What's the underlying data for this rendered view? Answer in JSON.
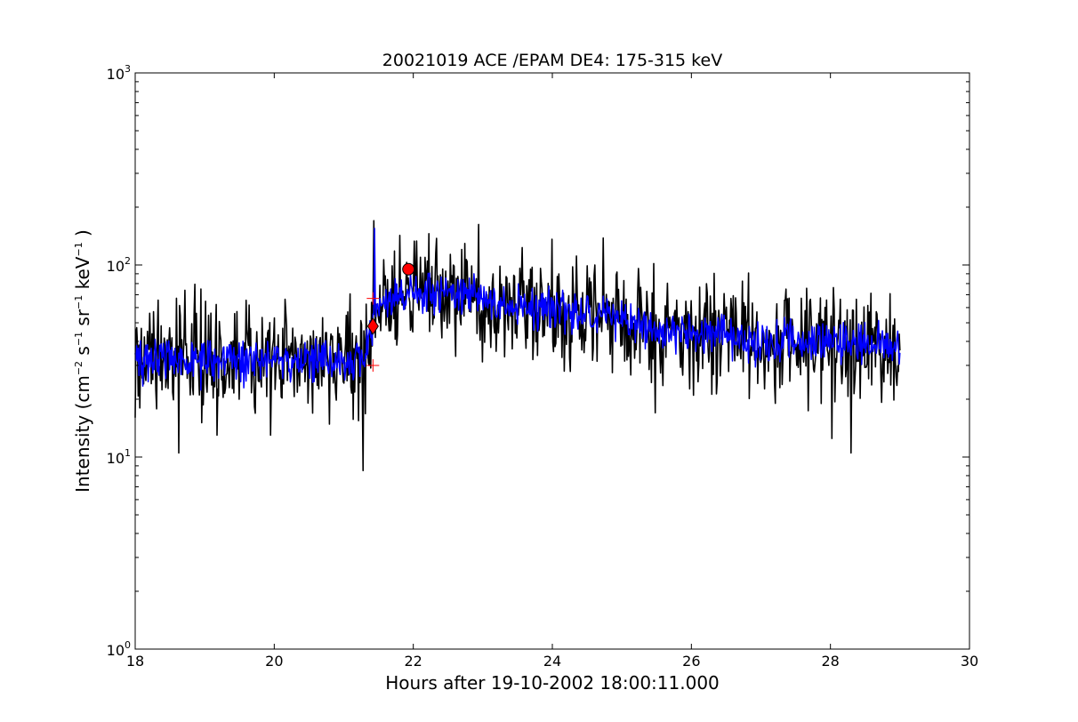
{
  "chart_data": {
    "type": "line",
    "title": "20021019 ACE /EPAM DE4: 175-315 keV",
    "xlabel": "Hours after 19-10-2002 18:00:11.000",
    "ylabel": {
      "prefix": "Intensity (cm",
      "exp1": "−2",
      "mid1": " s",
      "exp2": "−1",
      "mid2": " sr",
      "exp3": "−1",
      "mid3": " keV",
      "exp4": "−1",
      "suffix": " )"
    },
    "xlim": [
      18,
      30
    ],
    "ylim": [
      1,
      1000
    ],
    "yscale": "log",
    "grid": false,
    "x_ticks": [
      "18",
      "20",
      "22",
      "24",
      "26",
      "28",
      "30"
    ],
    "y_ticks": [
      {
        "base": "10",
        "exp": "0",
        "value": 1
      },
      {
        "base": "10",
        "exp": "1",
        "value": 10
      },
      {
        "base": "10",
        "exp": "2",
        "value": 100
      },
      {
        "base": "10",
        "exp": "3",
        "value": 1000
      }
    ],
    "series": [
      {
        "style": "raw",
        "color": "#000000",
        "x_start": 18.0,
        "x_end": 29.0,
        "baseline_segments": [
          [
            18.0,
            33
          ],
          [
            21.3,
            31
          ],
          [
            21.45,
            62
          ],
          [
            21.9,
            70
          ],
          [
            22.6,
            72
          ],
          [
            23.6,
            60
          ],
          [
            24.4,
            56
          ],
          [
            25.5,
            47
          ],
          [
            26.5,
            43
          ],
          [
            27.5,
            40
          ],
          [
            29.0,
            37
          ]
        ],
        "spikes": [
          [
            18.63,
            10.5
          ],
          [
            19.18,
            13
          ],
          [
            19.95,
            13
          ],
          [
            21.28,
            8.5
          ],
          [
            21.43,
            170
          ],
          [
            22.0,
            90
          ],
          [
            22.55,
            88
          ],
          [
            25.48,
            17
          ],
          [
            28.02,
            12.5
          ],
          [
            28.3,
            10.5
          ]
        ]
      },
      {
        "style": "smoothed",
        "color": "#0000ff",
        "x_start": 18.0,
        "x_end": 29.0,
        "baseline_segments": [
          [
            18.0,
            33
          ],
          [
            21.3,
            31
          ],
          [
            21.45,
            62
          ],
          [
            21.9,
            70
          ],
          [
            22.6,
            72
          ],
          [
            23.6,
            60
          ],
          [
            24.4,
            56
          ],
          [
            25.5,
            47
          ],
          [
            26.5,
            43
          ],
          [
            27.5,
            40
          ],
          [
            29.0,
            37
          ]
        ],
        "spikes": [
          [
            21.44,
            155
          ]
        ]
      }
    ],
    "markers": [
      {
        "shape": "diamond",
        "color": "#ff0000",
        "x": 21.42,
        "y": 48
      },
      {
        "shape": "circle",
        "color": "#ff0000",
        "x": 21.93,
        "y": 95
      },
      {
        "shape": "plus",
        "color": "#ff0000",
        "x": 21.42,
        "y": 67
      },
      {
        "shape": "plus",
        "color": "#ff0000",
        "x": 21.42,
        "y": 30
      }
    ]
  }
}
